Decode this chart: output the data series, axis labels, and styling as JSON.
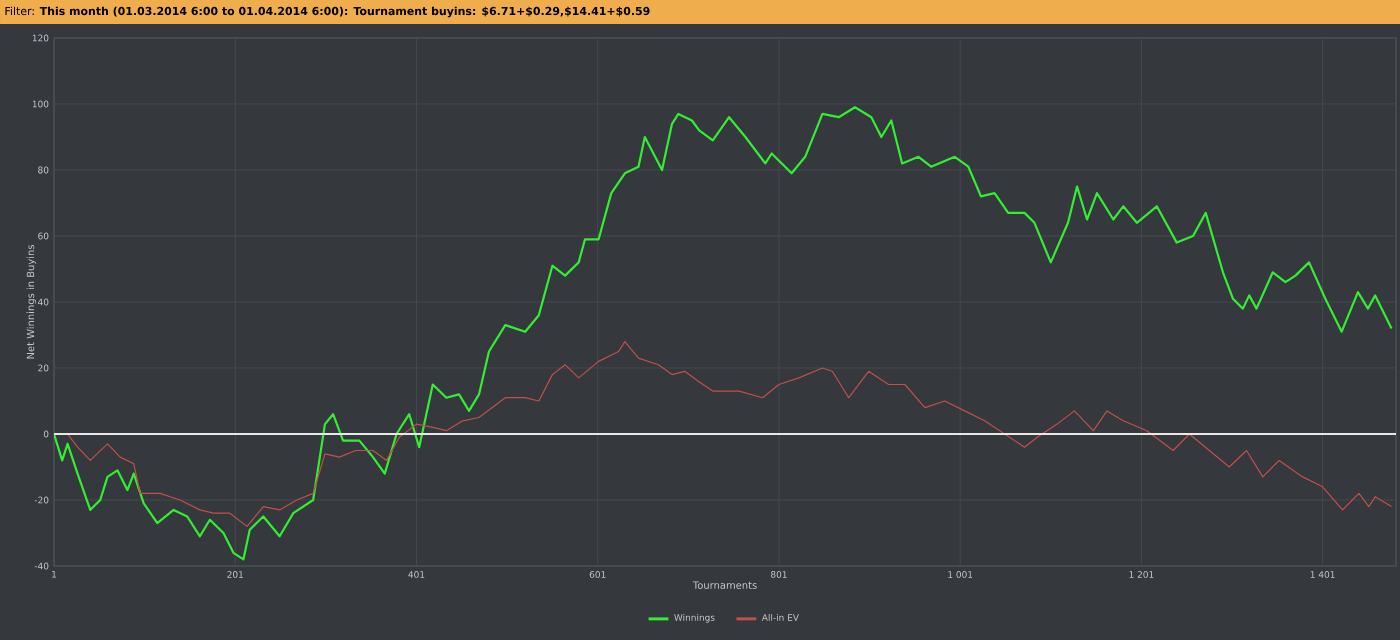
{
  "chart_data": {
    "type": "line",
    "title": "Filter: **This month (01.03.2014 6:00 to 01.04.2014 6:00): Tournament buyins: $6.71+$0.29,$14.41+$0.59**",
    "xlabel": "Tournaments",
    "ylabel": "Net Winnings in Buyins",
    "xlim": [
      1,
      1482
    ],
    "ylim": [
      -40,
      120
    ],
    "xticks": [
      1,
      201,
      401,
      601,
      801,
      {
        "value": 1001,
        "label": "1 001"
      },
      {
        "value": 1201,
        "label": "1 201"
      },
      {
        "value": 1401,
        "label": "1 401"
      }
    ],
    "yticks": [
      -40,
      -20,
      0,
      20,
      40,
      60,
      80,
      100,
      120
    ],
    "grid": true,
    "legend": "bottom",
    "ref_lines": [
      {
        "axis": "y",
        "value": 0,
        "color": "#e8e8e8"
      }
    ],
    "series": [
      {
        "name": "Winnings",
        "color": "#33ee33",
        "x": [
          1,
          10,
          16,
          27,
          41,
          52,
          60,
          71,
          82,
          89,
          100,
          115,
          133,
          148,
          162,
          173,
          188,
          199,
          210,
          217,
          232,
          250,
          265,
          287,
          300,
          309,
          320,
          338,
          353,
          366,
          379,
          393,
          404,
          419,
          434,
          448,
          459,
          470,
          481,
          499,
          521,
          536,
          551,
          565,
          580,
          587,
          602,
          616,
          631,
          646,
          653,
          672,
          683,
          690,
          705,
          713,
          728,
          746,
          764,
          786,
          793,
          815,
          830,
          849,
          867,
          885,
          903,
          914,
          925,
          937,
          955,
          969,
          995,
          1010,
          1024,
          1039,
          1054,
          1072,
          1083,
          1101,
          1120,
          1130,
          1141,
          1152,
          1170,
          1181,
          1196,
          1218,
          1240,
          1258,
          1272,
          1291,
          1302,
          1313,
          1320,
          1328,
          1346,
          1360,
          1371,
          1386,
          1404,
          1422,
          1440,
          1451,
          1459,
          1477
        ],
        "values": [
          0,
          -8,
          -3,
          -12,
          -23,
          -20,
          -13,
          -11,
          -17,
          -12,
          -21,
          -27,
          -23,
          -25,
          -31,
          -26,
          -30,
          -36,
          -38,
          -29,
          -25,
          -31,
          -24,
          -20,
          3,
          6,
          -2,
          -2,
          -7,
          -12,
          0,
          6,
          -4,
          15,
          11,
          12,
          7,
          12,
          25,
          33,
          31,
          36,
          51,
          48,
          52,
          59,
          59,
          73,
          79,
          81,
          90,
          80,
          94,
          97,
          95,
          92,
          89,
          96,
          90,
          82,
          85,
          79,
          84,
          97,
          96,
          99,
          96,
          90,
          95,
          82,
          84,
          81,
          84,
          81,
          72,
          73,
          67,
          67,
          64,
          52,
          64,
          75,
          65,
          73,
          65,
          69,
          64,
          69,
          58,
          60,
          67,
          49,
          41,
          38,
          42,
          38,
          49,
          46,
          48,
          52,
          41,
          31,
          43,
          38,
          42,
          32
        ]
      },
      {
        "name": "All-in EV",
        "color": "#c0504d",
        "x": [
          1,
          16,
          27,
          41,
          60,
          74,
          89,
          96,
          118,
          140,
          162,
          177,
          195,
          214,
          232,
          250,
          269,
          287,
          300,
          316,
          334,
          353,
          368,
          382,
          401,
          419,
          434,
          452,
          470,
          499,
          521,
          536,
          551,
          565,
          580,
          602,
          624,
          631,
          646,
          668,
          683,
          697,
          712,
          728,
          757,
          783,
          801,
          823,
          849,
          860,
          878,
          900,
          922,
          940,
          962,
          984,
          1006,
          1028,
          1050,
          1072,
          1086,
          1108,
          1127,
          1148,
          1163,
          1181,
          1207,
          1236,
          1254,
          1276,
          1298,
          1317,
          1335,
          1353,
          1379,
          1401,
          1423,
          1441,
          1452,
          1459,
          1477
        ],
        "values": [
          0,
          0,
          -4,
          -8,
          -3,
          -7,
          -9,
          -18,
          -18,
          -20,
          -23,
          -24,
          -24,
          -28,
          -22,
          -23,
          -20,
          -18,
          -6,
          -7,
          -5,
          -5,
          -8,
          -1,
          3,
          2,
          1,
          4,
          5,
          11,
          11,
          10,
          18,
          21,
          17,
          22,
          25,
          28,
          23,
          21,
          18,
          19,
          16,
          13,
          13,
          11,
          15,
          17,
          20,
          19,
          11,
          19,
          15,
          15,
          8,
          10,
          7,
          4,
          0,
          -4,
          -1,
          3,
          7,
          1,
          7,
          4,
          1,
          -5,
          0,
          -5,
          -10,
          -5,
          -13,
          -8,
          -13,
          -16,
          -23,
          -18,
          -22,
          -19,
          -22
        ]
      }
    ]
  }
}
